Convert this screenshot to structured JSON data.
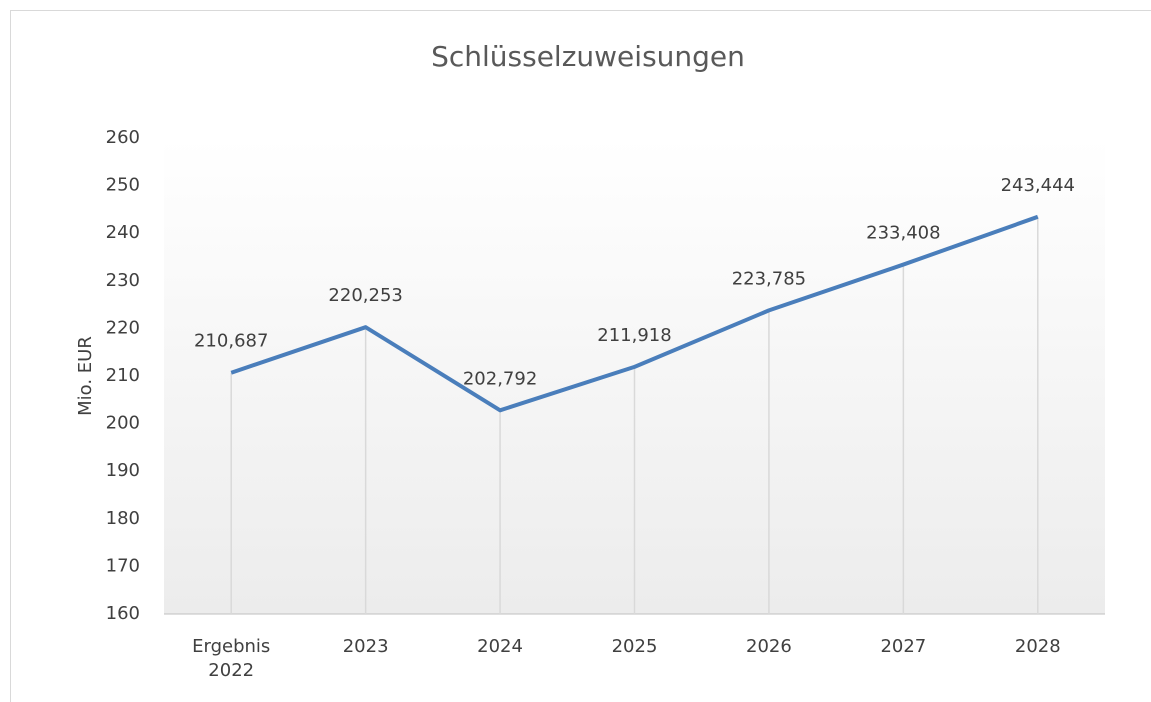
{
  "chart_data": {
    "type": "line",
    "title": "Schlüsselzuweisungen",
    "y_label": "Mio. EUR",
    "categories": [
      "Ergebnis 2022",
      "2023",
      "2024",
      "2025",
      "2026",
      "2027",
      "2028"
    ],
    "series": [
      {
        "name": "Schlüsselzuweisungen",
        "color": "#4a7ebb",
        "values": [
          210.687,
          220.253,
          202.792,
          211.918,
          223.785,
          233.408,
          243.444
        ],
        "value_labels": [
          "210,687",
          "220,253",
          "202,792",
          "211,918",
          "223,785",
          "233,408",
          "243,444"
        ]
      }
    ],
    "ylim": [
      160,
      260
    ],
    "yticks": [
      160,
      170,
      180,
      190,
      200,
      210,
      220,
      230,
      240,
      250,
      260
    ],
    "drop_lines": true
  }
}
